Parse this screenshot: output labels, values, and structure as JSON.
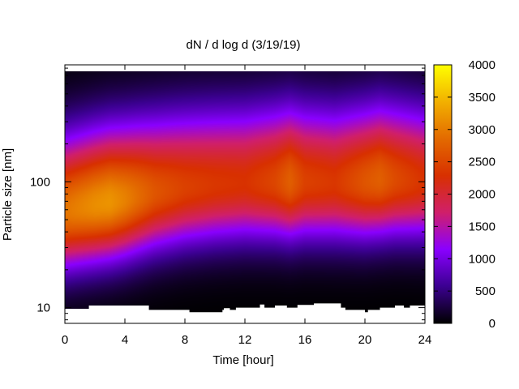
{
  "chart_data": {
    "type": "heatmap",
    "title": "dN / d log d (3/19/19)",
    "xlabel": "Time [hour]",
    "ylabel": "Particle size [nm]",
    "x_range": [
      0,
      24
    ],
    "x_ticks": [
      0,
      4,
      8,
      12,
      16,
      20,
      24
    ],
    "y_scale": "log",
    "y_range": [
      7.5,
      850
    ],
    "y_ticks": [
      10,
      100
    ],
    "colorbar": {
      "range": [
        0,
        4000
      ],
      "ticks": [
        0,
        500,
        1000,
        1500,
        2000,
        2500,
        3000,
        3500,
        4000
      ],
      "colormap": "black-purple-red-orange-yellow",
      "stops": [
        "#000000",
        "#3b0090",
        "#8a00ff",
        "#d01f6a",
        "#d83000",
        "#e36a00",
        "#f2b000",
        "#ffff00"
      ]
    },
    "mode_diameter": {
      "x": [
        0,
        2,
        4,
        6,
        8,
        10,
        12,
        14,
        15,
        16,
        18,
        20,
        21,
        22,
        24
      ],
      "y": [
        58,
        65,
        72,
        82,
        90,
        95,
        98,
        100,
        100,
        100,
        98,
        100,
        104,
        104,
        100
      ]
    },
    "peak_concentration": {
      "x": [
        0,
        2,
        3,
        4,
        6,
        8,
        10,
        12,
        14,
        15,
        16,
        18,
        20,
        21,
        22,
        24
      ],
      "y": [
        2950,
        3150,
        3200,
        3050,
        2650,
        2450,
        2350,
        2300,
        2500,
        2750,
        2450,
        2350,
        2650,
        2750,
        2550,
        2300
      ]
    },
    "lower_cutoff": {
      "x": [
        0,
        1.3,
        1.6,
        5.6,
        8.3,
        10.5,
        10.6,
        11.0,
        11.4,
        13.0,
        13.3,
        14.0,
        14.8,
        15.5,
        16.6,
        18.4,
        18.7,
        20.0,
        20.2,
        21.0,
        22.0,
        22.6,
        23.0,
        24
      ],
      "y": [
        9.8,
        9.8,
        10.4,
        9.6,
        9.2,
        9.6,
        9.9,
        9.6,
        10.0,
        10.6,
        10.0,
        10.4,
        10.0,
        10.5,
        10.8,
        10.0,
        9.6,
        9.2,
        9.6,
        10.0,
        10.4,
        10.0,
        10.4,
        10.0
      ]
    }
  }
}
